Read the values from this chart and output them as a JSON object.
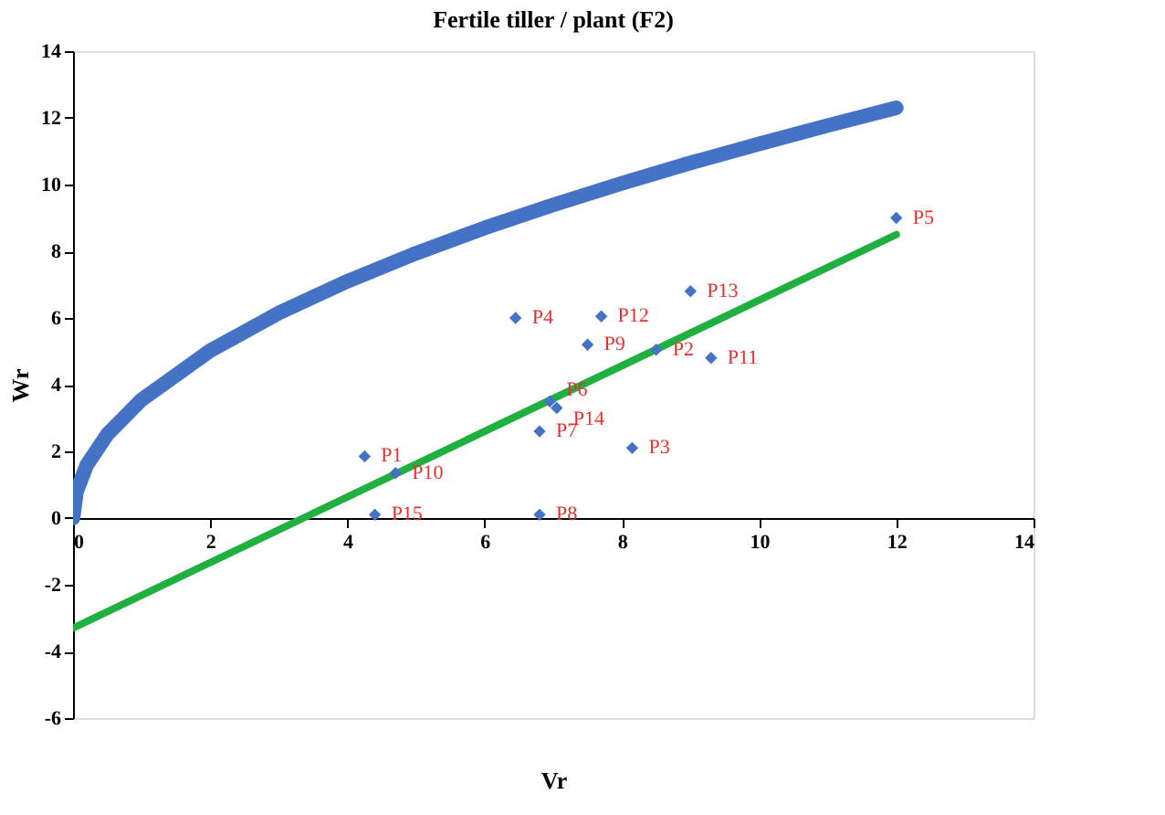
{
  "chart_data": {
    "type": "scatter",
    "title": "Fertile tiller / plant (F2)",
    "xlabel": "Vr",
    "ylabel": "Wr",
    "xlim": [
      0,
      14
    ],
    "ylim": [
      -6,
      14
    ],
    "xticks": [
      0,
      2,
      4,
      6,
      8,
      10,
      12,
      14
    ],
    "yticks": [
      -6,
      -4,
      -2,
      0,
      2,
      4,
      6,
      8,
      10,
      12,
      14
    ],
    "grid": false,
    "series": [
      {
        "type": "line",
        "color": "#4472c4",
        "x": [
          0,
          0.05,
          0.2,
          0.5,
          1,
          2,
          3,
          4,
          5,
          6,
          7,
          8,
          9,
          10,
          11,
          12
        ],
        "values": [
          0,
          0.79,
          1.59,
          2.51,
          3.55,
          5.02,
          6.15,
          7.1,
          7.94,
          8.7,
          9.39,
          10.04,
          10.65,
          11.22,
          11.77,
          12.3
        ]
      },
      {
        "type": "line",
        "color": "#1fb040",
        "x": [
          0,
          12
        ],
        "values": [
          -3.3,
          8.5
        ]
      },
      {
        "marker": "diamond",
        "color": "#4472c4",
        "x": [
          4.25,
          8.5,
          8.15,
          6.45,
          12.0,
          6.95,
          6.8,
          6.8,
          7.5,
          4.7,
          9.3,
          7.7,
          9.0,
          7.05,
          4.4
        ],
        "values": [
          1.85,
          5.05,
          2.1,
          6.0,
          9.0,
          3.5,
          2.6,
          0.1,
          5.2,
          1.35,
          4.8,
          6.05,
          6.8,
          3.3,
          0.1
        ]
      }
    ],
    "annotations": [
      {
        "text": "P1",
        "x": 4.25,
        "y": 1.85
      },
      {
        "text": "P2",
        "x": 8.5,
        "y": 5.05
      },
      {
        "text": "P3",
        "x": 8.15,
        "y": 2.1
      },
      {
        "text": "P4",
        "x": 6.45,
        "y": 6.0
      },
      {
        "text": "P5",
        "x": 12.0,
        "y": 9.0
      },
      {
        "text": "P6",
        "x": 6.95,
        "y": 3.5
      },
      {
        "text": "P7",
        "x": 6.8,
        "y": 2.6
      },
      {
        "text": "P8",
        "x": 6.8,
        "y": 0.1
      },
      {
        "text": "P9",
        "x": 7.5,
        "y": 5.2
      },
      {
        "text": "P10",
        "x": 4.7,
        "y": 1.35
      },
      {
        "text": "P11",
        "x": 9.3,
        "y": 4.8
      },
      {
        "text": "P12",
        "x": 7.7,
        "y": 6.05
      },
      {
        "text": "P13",
        "x": 9.0,
        "y": 6.8
      },
      {
        "text": "P14",
        "x": 7.05,
        "y": 3.3
      },
      {
        "text": "P15",
        "x": 4.4,
        "y": 0.1
      }
    ]
  }
}
